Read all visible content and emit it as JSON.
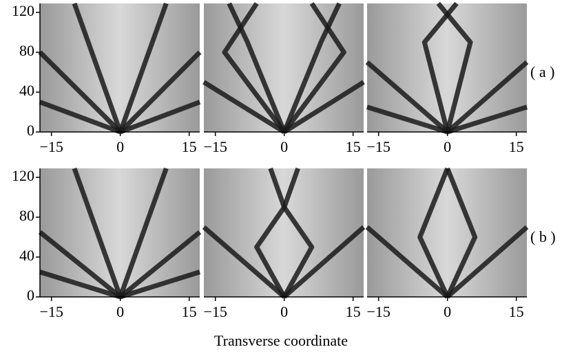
{
  "chart_data": [
    {
      "type": "heatmap",
      "xlim": [
        -17.5,
        17.3
      ],
      "ylim": [
        0,
        129
      ],
      "xticks": [
        {
          "value": -15,
          "label": "−15"
        },
        0,
        15
      ],
      "yticks": [
        0,
        40,
        80,
        120
      ]
    },
    {
      "type": "heatmap",
      "xlim": [
        -17.5,
        17.3
      ],
      "ylim": [
        0,
        129
      ],
      "xticks": [
        {
          "value": -15,
          "label": "−15"
        },
        0,
        15
      ]
    },
    {
      "type": "heatmap",
      "xlim": [
        -17.5,
        17.3
      ],
      "ylim": [
        0,
        129
      ],
      "xticks": [
        {
          "value": -15,
          "label": "−15"
        },
        0,
        15
      ]
    },
    {
      "type": "heatmap",
      "xlim": [
        -17.5,
        17.3
      ],
      "ylim": [
        0,
        129
      ],
      "xticks": [
        {
          "value": -15,
          "label": "−15"
        },
        0,
        15
      ],
      "yticks": [
        0,
        40,
        80,
        120
      ]
    },
    {
      "type": "heatmap",
      "xlim": [
        -17.5,
        17.3
      ],
      "ylim": [
        0,
        129
      ],
      "xticks": [
        {
          "value": -15,
          "label": "−15"
        },
        0,
        15
      ]
    },
    {
      "type": "heatmap",
      "xlim": [
        -17.5,
        17.3
      ],
      "ylim": [
        0,
        129
      ],
      "xticks": [
        {
          "value": -15,
          "label": "−15"
        },
        0,
        15
      ]
    }
  ],
  "figure": {
    "x_label": "Transverse coordinate",
    "row_labels": [
      "( a )",
      "( b )"
    ]
  }
}
